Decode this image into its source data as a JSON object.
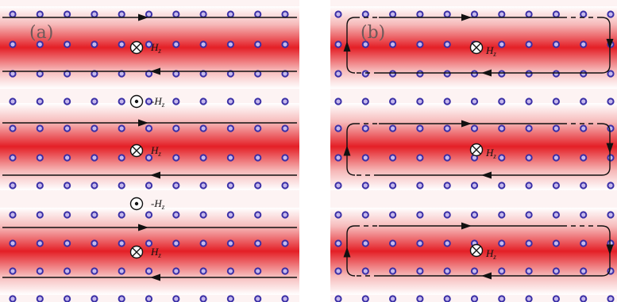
{
  "panels": [
    {
      "label": "(a)",
      "field_labels": [
        "H",
        "-H",
        "H",
        "-H",
        "H"
      ],
      "field_subscripts": [
        "z",
        "z",
        "z",
        "z",
        "z"
      ],
      "field_symbols": [
        "into-page",
        "out-of-page",
        "into-page",
        "out-of-page",
        "into-page"
      ],
      "current_directions": [
        "right",
        "left",
        "right",
        "left",
        "right",
        "left"
      ]
    },
    {
      "label": "(b)",
      "field_labels": [
        "H",
        "H",
        "H"
      ],
      "field_subscripts": [
        "z",
        "z",
        "z"
      ],
      "field_symbols": [
        "into-page",
        "into-page",
        "into-page"
      ],
      "loop_direction": "clockwise"
    }
  ],
  "colors": {
    "band_red": "#e41f26",
    "band_edge": "#f6b9b9",
    "atom_fill": "#c6b9ec",
    "atom_stroke": "#3a2fa6",
    "line": "#111111"
  }
}
